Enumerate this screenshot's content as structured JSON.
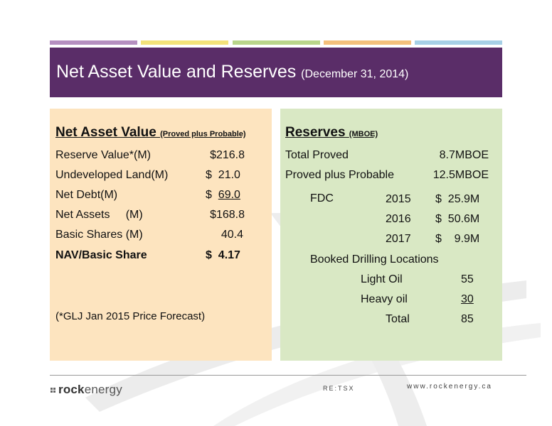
{
  "title": {
    "main": "Net Asset Value and Reserves ",
    "date": "(December 31, 2014)"
  },
  "nav_panel": {
    "heading": "Net Asset Value ",
    "heading_sub": "(Proved plus Probable)",
    "rows": [
      {
        "label": "Reserve Value*(M)",
        "value": "$216.8"
      },
      {
        "label": "Undeveloped Land(M)",
        "value": "$  21.0"
      },
      {
        "label": "Net Debt(M)",
        "value_prefix": "$  ",
        "value": "69.0"
      },
      {
        "label": "Net Assets     (M)",
        "value": "$168.8"
      },
      {
        "label": "Basic Shares (M)",
        "value": "40.4"
      },
      {
        "label": "NAV/Basic Share",
        "value": "$  4.17"
      }
    ],
    "footnote": "(*GLJ Jan 2015 Price Forecast)"
  },
  "reserves_panel": {
    "heading": "Reserves ",
    "heading_sub": "(MBOE)",
    "total_proved_label": "Total Proved",
    "total_proved_value": "8.7MBOE",
    "proved_probable_label": "Proved plus Probable",
    "proved_probable_value": "12.5MBOE",
    "fdc_label": "FDC",
    "fdc": [
      {
        "year": "2015",
        "value": "$  25.9M"
      },
      {
        "year": "2016",
        "value": "$  50.6M"
      },
      {
        "year": "2017",
        "value": "$    9.9M"
      }
    ],
    "booked_label": "Booked Drilling Locations",
    "locations": [
      {
        "label": "Light Oil",
        "value": "55"
      },
      {
        "label": "Heavy oil",
        "value": "30"
      },
      {
        "label": "Total",
        "value": "85"
      }
    ]
  },
  "footer": {
    "logo_rock": "rock",
    "logo_energy": "energy",
    "ticker": "RE:TSX",
    "website": "www.rockenergy.ca"
  }
}
